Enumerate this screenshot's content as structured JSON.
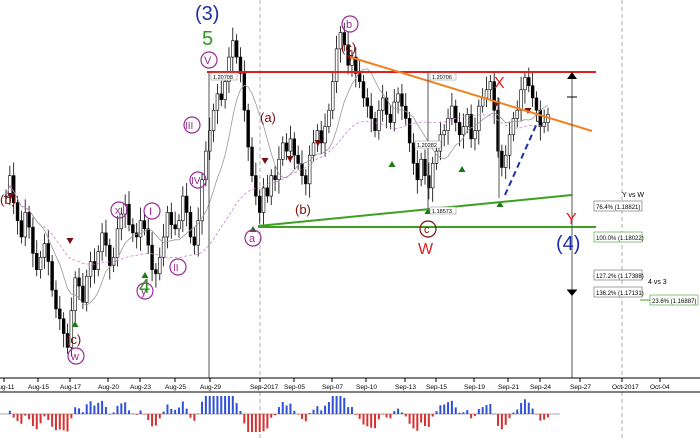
{
  "colors": {
    "bull": "#000000",
    "bear": "#000000",
    "wick": "#000000",
    "grid": "#9a9a9a",
    "red_line": "#e02020",
    "orange_line": "#f08020",
    "green_line": "#3da020",
    "blue_wave": "#1e2ea8",
    "green_wave": "#2a9a1a",
    "purple": "#9a2a9a",
    "maroon": "#7a0d0d",
    "red_label": "#e02020",
    "macd_pos": "#3050d8",
    "macd_neg": "#d83030"
  },
  "chart_data": {
    "type": "candlestick",
    "instrument_hint": "",
    "x_tick_labels": [
      "Aug-11",
      "Aug-15",
      "Aug-17",
      "Aug-20",
      "Aug-23",
      "Aug-25",
      "Aug-29",
      "Sep-2017",
      "Sep-05",
      "Sep-07",
      "Sep-10",
      "Sep-13",
      "Sep-15",
      "Sep-19",
      "Sep-21",
      "Sep-24",
      "Sep-27",
      "Oct-2017",
      "Oct-04"
    ],
    "price_range": [
      1.166,
      1.211
    ],
    "candles_hint": "approximate close path, data units",
    "closes": [
      1.188,
      1.1905,
      1.1872,
      1.185,
      1.183,
      1.186,
      1.1842,
      1.181,
      1.179,
      1.1805,
      1.1822,
      1.18,
      1.1765,
      1.1742,
      1.173,
      1.1712,
      1.1695,
      1.174,
      1.178,
      1.177,
      1.175,
      1.1782,
      1.18,
      1.179,
      1.1812,
      1.1835,
      1.182,
      1.1795,
      1.1805,
      1.184,
      1.1858,
      1.187,
      1.1845,
      1.1835,
      1.183,
      1.185,
      1.184,
      1.182,
      1.179,
      1.1785,
      1.1805,
      1.183,
      1.186,
      1.1845,
      1.184,
      1.185,
      1.188,
      1.186,
      1.183,
      1.182,
      1.185,
      1.19,
      1.1935,
      1.196,
      1.1985,
      1.2005,
      1.1998,
      1.202,
      1.205,
      1.207,
      1.205,
      1.203,
      1.1985,
      1.194,
      1.1905,
      1.188,
      1.186,
      1.189,
      1.188,
      1.1905,
      1.19,
      1.1925,
      1.1945,
      1.1935,
      1.195,
      1.193,
      1.192,
      1.1905,
      1.1895,
      1.193,
      1.1945,
      1.196,
      1.1945,
      1.1965,
      1.1985,
      1.202,
      1.206,
      1.208,
      1.2065,
      1.204,
      1.205,
      1.203,
      1.202,
      1.2,
      1.199,
      1.1975,
      1.196,
      1.1985,
      1.2,
      1.198,
      1.197,
      1.1995,
      1.2005,
      1.199,
      1.1975,
      1.1945,
      1.192,
      1.19,
      1.1925,
      1.1905,
      1.189,
      1.192,
      1.1935,
      1.1955,
      1.196,
      1.1975,
      1.199,
      1.197,
      1.1955,
      1.1965,
      1.198,
      1.195,
      1.196,
      1.199,
      1.2,
      1.201,
      1.202,
      1.1985,
      1.1935,
      1.1915,
      1.193,
      1.1955,
      1.1975,
      1.1985,
      1.201,
      1.2025,
      1.2015,
      1.2,
      1.1985,
      1.1965,
      1.197,
      1.198
    ]
  },
  "price_annotations": [
    {
      "text": "1.20708"
    },
    {
      "text": "1.20706"
    },
    {
      "text": "1.20282"
    },
    {
      "text": "1.18573"
    },
    {
      "text": "Y vs W"
    },
    {
      "text": "76.4% (1.18821)"
    },
    {
      "text": "100.0% (1.18022)"
    },
    {
      "text": "127.2% (1.17388)"
    },
    {
      "text": "4 vs 3"
    },
    {
      "text": "136.2% (1.17131)"
    },
    {
      "text": "23.6% (1.16887)"
    }
  ],
  "wave_labels": {
    "w3": "(3)",
    "w5": "5",
    "w4": "4",
    "w4big": "(4)",
    "V": "V",
    "III": "III",
    "IV": "IV",
    "II": "II",
    "I": "I",
    "x": "x",
    "y": "y",
    "w": "w",
    "b_circ": "b",
    "c_paren": "(c)",
    "c_low": "(c)",
    "a_paren": "(a)",
    "b_paren": "(b)",
    "b_left": "(b)",
    "b_mid": "(b)",
    "a_circ": "a",
    "c_circ": "c",
    "X": "X",
    "Y": "Y",
    "W": "W"
  }
}
